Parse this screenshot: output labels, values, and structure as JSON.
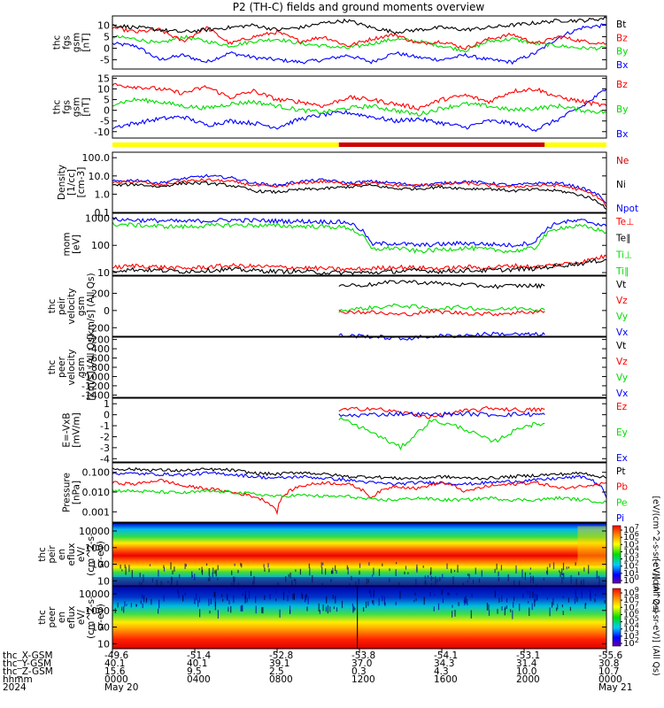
{
  "title": "P2 (TH-C) fields and ground moments overview",
  "colors": {
    "black": "#000000",
    "red": "#ff0000",
    "green": "#00dd00",
    "blue": "#0000ff",
    "yellow": "#ffff00",
    "darkred": "#cc0000"
  },
  "chart_data": [
    {
      "id": "fgs-gsm",
      "type": "line",
      "ylabel": [
        "thc",
        "fgs",
        "gsm",
        "[nT]"
      ],
      "yticks": [
        "10",
        "5",
        "0",
        "-5"
      ],
      "ylim": [
        -9,
        14
      ],
      "legend": [
        {
          "label": "Bt",
          "color": "#000000"
        },
        {
          "label": "Bz",
          "color": "#ff0000"
        },
        {
          "label": "By",
          "color": "#00dd00"
        },
        {
          "label": "Bx",
          "color": "#0000ff"
        }
      ],
      "series": [
        {
          "color": "#0000ff",
          "values": [
            2,
            1,
            -5,
            -3,
            -6,
            -2,
            -4,
            -5,
            -6,
            -5,
            -3,
            -6,
            -2,
            -4,
            -5,
            -3,
            -5,
            -6,
            -2,
            5,
            9,
            10
          ]
        },
        {
          "color": "#00dd00",
          "values": [
            5,
            4,
            2,
            5,
            3,
            1,
            3,
            4,
            2,
            1,
            0,
            2,
            4,
            3,
            1,
            -1,
            3,
            4,
            2,
            1,
            0,
            0
          ]
        },
        {
          "color": "#ff0000",
          "values": [
            9,
            7,
            8,
            3,
            9,
            2,
            5,
            7,
            3,
            5,
            1,
            4,
            6,
            2,
            3,
            0,
            4,
            6,
            2,
            5,
            3,
            2
          ]
        },
        {
          "color": "#000000",
          "values": [
            10,
            9,
            8,
            7,
            8,
            9,
            10,
            8,
            9,
            11,
            12,
            9,
            7,
            8,
            9,
            8,
            9,
            10,
            11,
            12,
            12,
            13
          ]
        }
      ]
    },
    {
      "id": "fgs-gsm-2",
      "type": "line",
      "ylabel": [
        "thc",
        "fgs",
        "gsm",
        "[nT]"
      ],
      "yticks": [
        "15",
        "10",
        "5",
        "0",
        "-5",
        "-10"
      ],
      "ylim": [
        -13,
        16
      ],
      "legend": [
        {
          "label": "Bz",
          "color": "#ff0000"
        },
        {
          "label": "By",
          "color": "#00dd00"
        },
        {
          "label": "Bx",
          "color": "#0000ff"
        }
      ],
      "series": [
        {
          "color": "#0000ff",
          "values": [
            -8,
            -6,
            -4,
            -3,
            -7,
            -5,
            -6,
            -8,
            -4,
            -2,
            -1,
            -3,
            -5,
            -4,
            -6,
            -8,
            -5,
            -6,
            -9,
            -4,
            2,
            10
          ]
        },
        {
          "color": "#00dd00",
          "values": [
            3,
            5,
            4,
            2,
            1,
            3,
            4,
            2,
            0,
            -1,
            1,
            2,
            0,
            -2,
            1,
            3,
            2,
            0,
            1,
            2,
            0,
            -1
          ]
        },
        {
          "color": "#ff0000",
          "values": [
            12,
            11,
            10,
            8,
            11,
            6,
            9,
            5,
            4,
            2,
            6,
            5,
            3,
            1,
            5,
            7,
            4,
            9,
            10,
            6,
            4,
            2
          ]
        }
      ]
    },
    {
      "id": "density",
      "type": "line",
      "log": true,
      "ylabel": [
        "Density",
        "[1/cc]",
        "[cm-3]"
      ],
      "yticks": [
        "100.0",
        "10.0",
        "1.0",
        "0.1"
      ],
      "ylim": [
        0.1,
        200
      ],
      "legend": [
        {
          "label": "Ne",
          "color": "#cc0000"
        },
        {
          "label": "Ni",
          "color": "#000000"
        },
        {
          "label": "Npot",
          "color": "#0000ff"
        }
      ],
      "series": [
        {
          "color": "#0000ff",
          "values": [
            5,
            6,
            4,
            7,
            10,
            8,
            4,
            3,
            5,
            6,
            4,
            5,
            4,
            3,
            4,
            5,
            4,
            3,
            4,
            4,
            2,
            0.3
          ]
        },
        {
          "color": "#ff0000",
          "values": [
            4,
            5,
            3,
            5,
            6,
            5,
            3,
            2.5,
            4,
            5,
            3.5,
            4,
            3,
            3,
            3.5,
            4,
            3,
            2.5,
            3,
            3,
            1.5,
            0.2
          ]
        },
        {
          "color": "#000000",
          "values": [
            3,
            3.5,
            2.5,
            4,
            4,
            3,
            1.5,
            1.3,
            1.8,
            2,
            2.5,
            3,
            2,
            2,
            2.5,
            2,
            2,
            1.5,
            1.8,
            1.5,
            0.8,
            0.15
          ]
        }
      ]
    },
    {
      "id": "temperature",
      "type": "line",
      "log": true,
      "ylabel": [
        "mom",
        "[eV]"
      ],
      "yticks": [
        "1000",
        "100",
        "10"
      ],
      "ylim": [
        8,
        1500
      ],
      "legend": [
        {
          "label": "Te⊥",
          "color": "#ff0000"
        },
        {
          "label": "Te∥",
          "color": "#000000"
        },
        {
          "label": "Ti⊥",
          "color": "#00dd00"
        },
        {
          "label": "Ti∥",
          "color": "#00dd00"
        }
      ],
      "series": [
        {
          "color": "#0000ff",
          "values": [
            900,
            850,
            800,
            750,
            800,
            850,
            820,
            780,
            760,
            740,
            700,
            110,
            120,
            100,
            110,
            120,
            110,
            100,
            130,
            700,
            800,
            500
          ]
        },
        {
          "color": "#00dd00",
          "values": [
            600,
            550,
            500,
            480,
            520,
            560,
            540,
            520,
            500,
            480,
            450,
            70,
            80,
            60,
            70,
            80,
            70,
            60,
            80,
            450,
            500,
            300
          ]
        },
        {
          "color": "#ff0000",
          "values": [
            15,
            18,
            16,
            14,
            16,
            18,
            17,
            16,
            15,
            14,
            13,
            14,
            16,
            15,
            14,
            16,
            15,
            18,
            16,
            20,
            25,
            40
          ]
        },
        {
          "color": "#000000",
          "values": [
            12,
            13,
            12,
            11,
            12,
            13,
            12,
            11,
            11,
            10,
            10,
            10,
            11,
            12,
            11,
            12,
            12,
            13,
            14,
            18,
            22,
            30
          ]
        }
      ]
    },
    {
      "id": "peir-velocity",
      "type": "line",
      "ylabel": [
        "thc",
        "peir",
        "velocity",
        "gsm",
        "[km/s] (All Qs)"
      ],
      "yticks": [
        "200",
        "0",
        "-200"
      ],
      "ylim": [
        -300,
        400
      ],
      "legend": [
        {
          "label": "Vt",
          "color": "#000000"
        },
        {
          "label": "Vz",
          "color": "#ff0000"
        },
        {
          "label": "Vy",
          "color": "#00dd00"
        },
        {
          "label": "Vx",
          "color": "#0000ff"
        }
      ],
      "series": [
        {
          "color": "#000000",
          "x": [
            11.0,
            12.5,
            14.0,
            15.5,
            17.0,
            18.5,
            20.0,
            21.0
          ],
          "values": [
            290,
            300,
            340,
            320,
            300,
            280,
            290,
            285
          ]
        },
        {
          "color": "#00dd00",
          "x": [
            11.0,
            12.5,
            14.0,
            15.5,
            17.0,
            18.5,
            20.0,
            21.0
          ],
          "values": [
            0,
            30,
            60,
            20,
            40,
            10,
            30,
            5
          ]
        },
        {
          "color": "#ff0000",
          "x": [
            11.0,
            12.5,
            14.0,
            15.5,
            17.0,
            18.5,
            20.0,
            21.0
          ],
          "values": [
            -10,
            -20,
            -50,
            -10,
            -30,
            -40,
            -20,
            -10
          ]
        },
        {
          "color": "#0000ff",
          "x": [
            11.0,
            12.5,
            14.0,
            15.5,
            17.0,
            18.5,
            20.0,
            21.0
          ],
          "values": [
            -290,
            -300,
            -330,
            -300,
            -290,
            -270,
            -280,
            -280
          ]
        }
      ]
    },
    {
      "id": "peer-velocity",
      "type": "line",
      "ylabel": [
        "thc",
        "peer",
        "velocity",
        "gsm",
        "[km/s] (All Qs)"
      ],
      "yticks": [
        "-200",
        "-400",
        "-600",
        "-800",
        "-1000",
        "-1200",
        "-1400"
      ],
      "ylim": [
        -1450,
        -150
      ],
      "legend": [
        {
          "label": "Vt",
          "color": "#000000"
        },
        {
          "label": "Vz",
          "color": "#ff0000"
        },
        {
          "label": "Vy",
          "color": "#00dd00"
        },
        {
          "label": "Vx",
          "color": "#0000ff"
        }
      ],
      "series": []
    },
    {
      "id": "efield",
      "type": "line",
      "ylabel": [
        "E=-VxB",
        "[mV/m]"
      ],
      "yticks": [
        "1",
        "0",
        "-1",
        "-2",
        "-3",
        "-4"
      ],
      "ylim": [
        -4.3,
        1.5
      ],
      "legend": [
        {
          "label": "Ez",
          "color": "#ff0000"
        },
        {
          "label": "Ey",
          "color": "#00dd00"
        },
        {
          "label": "Ex",
          "color": "#0000ff"
        }
      ],
      "series": [
        {
          "color": "#ff0000",
          "x": [
            11.0,
            12.5,
            14.0,
            15.5,
            17.0,
            18.5,
            20.0,
            21.0
          ],
          "values": [
            0.4,
            0.6,
            0.2,
            -0.2,
            0.3,
            0.6,
            0.4,
            0.5
          ]
        },
        {
          "color": "#0000ff",
          "x": [
            11.0,
            12.5,
            14.0,
            15.5,
            17.0,
            18.5,
            20.0,
            21.0
          ],
          "values": [
            -0.1,
            0.0,
            0.1,
            0.0,
            0.1,
            0.0,
            0.05,
            0.0
          ]
        },
        {
          "color": "#00dd00",
          "x": [
            11.0,
            12.5,
            14.0,
            15.5,
            17.0,
            18.5,
            20.0,
            21.0
          ],
          "values": [
            -0.3,
            -1.5,
            -3.0,
            -0.5,
            -1.2,
            -2.5,
            -1.0,
            -0.8
          ]
        }
      ]
    },
    {
      "id": "pressure",
      "type": "line",
      "log": true,
      "ylabel": [
        "Pressure",
        "[nPa]"
      ],
      "yticks": [
        "0.100",
        "0.010",
        "0.001"
      ],
      "ylim": [
        0.0003,
        0.3
      ],
      "legend": [
        {
          "label": "Pt",
          "color": "#000000"
        },
        {
          "label": "Pb",
          "color": "#ff0000"
        },
        {
          "label": "Pe",
          "color": "#00dd00"
        },
        {
          "label": "Pi",
          "color": "#0000ff"
        }
      ],
      "series": [
        {
          "color": "#000000",
          "values": [
            0.15,
            0.14,
            0.13,
            0.12,
            0.14,
            0.13,
            0.09,
            0.08,
            0.1,
            0.08,
            0.06,
            0.06,
            0.05,
            0.05,
            0.06,
            0.05,
            0.05,
            0.06,
            0.07,
            0.08,
            0.09,
            0.05
          ]
        },
        {
          "color": "#0000ff",
          "values": [
            0.09,
            0.085,
            0.08,
            0.075,
            0.09,
            0.08,
            0.06,
            0.05,
            0.06,
            0.05,
            0.04,
            0.03,
            0.025,
            0.03,
            0.03,
            0.025,
            0.03,
            0.035,
            0.04,
            0.05,
            0.06,
            0.005
          ]
        },
        {
          "color": "#ff0000",
          "values": [
            0.03,
            0.025,
            0.04,
            0.02,
            0.015,
            0.01,
            0.006,
            0.001,
            0.02,
            0.03,
            0.025,
            0.005,
            0.02,
            0.015,
            0.03,
            0.01,
            0.02,
            0.025,
            0.03,
            0.015,
            0.02,
            0.03
          ]
        },
        {
          "color": "#00dd00",
          "values": [
            0.012,
            0.011,
            0.01,
            0.009,
            0.011,
            0.01,
            0.008,
            0.006,
            0.007,
            0.006,
            0.006,
            0.004,
            0.004,
            0.005,
            0.004,
            0.004,
            0.005,
            0.004,
            0.004,
            0.005,
            0.004,
            0.003
          ]
        }
      ]
    },
    {
      "id": "peir-spectrogram",
      "type": "heatmap",
      "ylabel": [
        "thc",
        "peir",
        "en",
        "eflux",
        "eV/",
        "(cm^2-s-",
        "sr-eV)"
      ],
      "yticks": [
        "10000",
        "1000",
        "100",
        "10"
      ],
      "colorbar": {
        "label": "[eV/(cm^2-s-sr-eV)] (All Qs)",
        "ticks": [
          "10^7",
          "10^6",
          "10^5",
          "10^4",
          "10^3",
          "10^2",
          "10^1",
          "10^0"
        ]
      }
    },
    {
      "id": "peer-spectrogram",
      "type": "heatmap",
      "ylabel": [
        "thc",
        "peer",
        "en",
        "eflux",
        "eV/",
        "(cm^2-s-",
        "sr-eV)"
      ],
      "yticks": [
        "10000",
        "1000",
        "100",
        "10"
      ],
      "colorbar": {
        "label": "[eV/(cm^2-s-sr-eV)] (All Qs)",
        "ticks": [
          "10^9",
          "10^8",
          "10^7",
          "10^6",
          "10^5",
          "10^4",
          "10^3",
          "10^2"
        ]
      }
    }
  ],
  "status_bar": {
    "segments": [
      {
        "from": 0.0,
        "to": 11.0,
        "color": "#ffff00"
      },
      {
        "from": 11.0,
        "to": 21.0,
        "color": "#cc0000"
      },
      {
        "from": 21.0,
        "to": 24.0,
        "color": "#ffff00"
      }
    ]
  },
  "x_axis": {
    "row_labels": [
      "thc_X-GSM",
      "thc_Y-GSM",
      "thc_Z-GSM",
      "hhmm",
      "2024"
    ],
    "columns": [
      {
        "x": "-49.6",
        "y": "40.1",
        "z": "15.6",
        "hhmm": "0000",
        "date": "May 20"
      },
      {
        "x": "-51.4",
        "y": "40.1",
        "z": "9.5",
        "hhmm": "0400",
        "date": ""
      },
      {
        "x": "-52.8",
        "y": "39.1",
        "z": "2.5",
        "hhmm": "0800",
        "date": ""
      },
      {
        "x": "-53.8",
        "y": "37.0",
        "z": "0.3",
        "hhmm": "1200",
        "date": ""
      },
      {
        "x": "-54.1",
        "y": "34.3",
        "z": "4.3",
        "hhmm": "1600",
        "date": ""
      },
      {
        "x": "-53.1",
        "y": "31.4",
        "z": "10.0",
        "hhmm": "2000",
        "date": ""
      },
      {
        "x": "-55.6",
        "y": "30.8",
        "z": "10.7",
        "hhmm": "0000",
        "date": "May 21"
      }
    ]
  }
}
